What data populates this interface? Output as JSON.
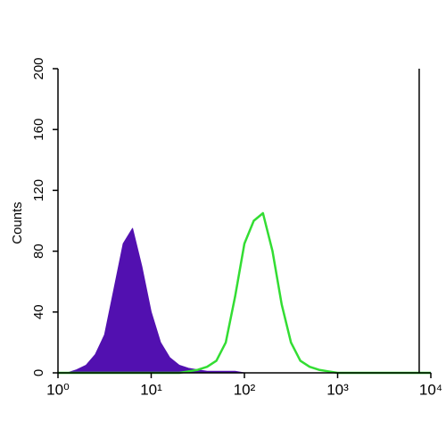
{
  "chart_data": {
    "type": "histogram",
    "y_label": "Counts",
    "log_x": true,
    "x": [
      1,
      1.26,
      1.58,
      2,
      2.51,
      3.16,
      3.98,
      5.01,
      6.31,
      7.94,
      10,
      12.6,
      15.8,
      20,
      25.1,
      31.6,
      39.8,
      50.1,
      63.1,
      79.4,
      100,
      126,
      158,
      200,
      251,
      316,
      398,
      501,
      631,
      794,
      1000,
      1260,
      1580,
      2000,
      2510,
      3160,
      3980,
      5010,
      6310,
      7940,
      10000
    ],
    "series": [
      {
        "color": "#5210b0",
        "filled": true,
        "values": [
          0,
          0,
          2,
          5,
          12,
          25,
          55,
          85,
          95,
          70,
          40,
          20,
          10,
          5,
          3,
          2,
          1,
          1,
          1,
          1,
          0,
          0,
          0,
          0,
          0,
          0,
          0,
          0,
          0,
          0,
          0,
          0,
          0,
          0,
          0,
          0,
          0,
          0,
          0,
          0,
          0
        ]
      },
      {
        "color": "#33dd33",
        "filled": false,
        "values": [
          0,
          0,
          0,
          0,
          0,
          0,
          0,
          0,
          0,
          0,
          0,
          0,
          0,
          0,
          1,
          2,
          4,
          8,
          20,
          50,
          85,
          100,
          105,
          80,
          45,
          20,
          8,
          4,
          2,
          1,
          0,
          0,
          0,
          0,
          0,
          0,
          0,
          0,
          0,
          0,
          0
        ]
      }
    ],
    "vline": 7500,
    "xlim": [
      1,
      10000
    ],
    "xticks": [
      {
        "value": 1,
        "label": "10⁰"
      },
      {
        "value": 10,
        "label": "10¹"
      },
      {
        "value": 100,
        "label": "10²"
      },
      {
        "value": 1000,
        "label": "10³"
      },
      {
        "value": 10000,
        "label": "10⁴"
      }
    ],
    "ylim": [
      0,
      200
    ],
    "yticks": [
      0,
      40,
      80,
      120,
      160,
      200
    ]
  }
}
